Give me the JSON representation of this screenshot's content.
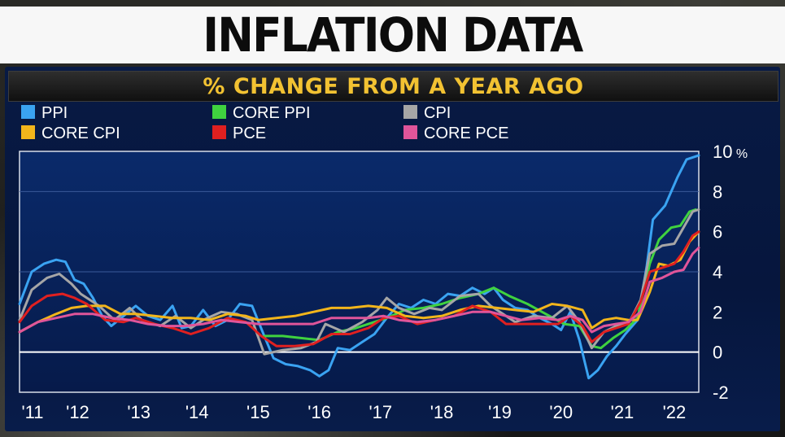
{
  "title": "INFLATION DATA",
  "subtitle": "% CHANGE FROM A YEAR AGO",
  "chart_data": {
    "type": "line",
    "title": "INFLATION DATA",
    "subtitle": "% CHANGE FROM A YEAR AGO",
    "x_ticks": [
      "'11",
      "'12",
      "'13",
      "'14",
      "'15",
      "'16",
      "'17",
      "'18",
      "'19",
      "'20",
      "'21",
      "'22"
    ],
    "y_ticks": [
      "10 %",
      "8",
      "6",
      "4",
      "2",
      "0",
      "-2"
    ],
    "y_range": [
      -2,
      10
    ],
    "x_range": [
      2011.0,
      2022.1
    ],
    "grid": "horizontal",
    "legend_position": "top-left",
    "series": [
      {
        "name": "PPI",
        "color": "#3aa3f2",
        "points": [
          [
            2011.0,
            2.4
          ],
          [
            2011.2,
            4.0
          ],
          [
            2011.4,
            4.4
          ],
          [
            2011.6,
            4.6
          ],
          [
            2011.75,
            4.5
          ],
          [
            2011.9,
            3.6
          ],
          [
            2012.05,
            3.4
          ],
          [
            2012.2,
            2.7
          ],
          [
            2012.35,
            1.8
          ],
          [
            2012.5,
            1.3
          ],
          [
            2012.7,
            1.8
          ],
          [
            2012.9,
            2.3
          ],
          [
            2013.1,
            1.8
          ],
          [
            2013.3,
            1.6
          ],
          [
            2013.5,
            2.3
          ],
          [
            2013.65,
            1.2
          ],
          [
            2013.8,
            1.3
          ],
          [
            2014.0,
            2.1
          ],
          [
            2014.2,
            1.3
          ],
          [
            2014.4,
            1.6
          ],
          [
            2014.6,
            2.4
          ],
          [
            2014.8,
            2.3
          ],
          [
            2015.0,
            0.8
          ],
          [
            2015.15,
            -0.3
          ],
          [
            2015.35,
            -0.6
          ],
          [
            2015.55,
            -0.7
          ],
          [
            2015.75,
            -0.9
          ],
          [
            2015.9,
            -1.2
          ],
          [
            2016.05,
            -0.9
          ],
          [
            2016.2,
            0.2
          ],
          [
            2016.4,
            0.1
          ],
          [
            2016.6,
            0.5
          ],
          [
            2016.8,
            0.9
          ],
          [
            2017.0,
            1.7
          ],
          [
            2017.2,
            2.4
          ],
          [
            2017.4,
            2.2
          ],
          [
            2017.6,
            2.6
          ],
          [
            2017.8,
            2.4
          ],
          [
            2018.0,
            2.9
          ],
          [
            2018.2,
            2.8
          ],
          [
            2018.4,
            3.2
          ],
          [
            2018.6,
            2.9
          ],
          [
            2018.75,
            3.2
          ],
          [
            2018.9,
            2.6
          ],
          [
            2019.1,
            2.2
          ],
          [
            2019.3,
            2.1
          ],
          [
            2019.5,
            1.7
          ],
          [
            2019.7,
            1.4
          ],
          [
            2019.85,
            1.1
          ],
          [
            2020.0,
            2.0
          ],
          [
            2020.15,
            0.6
          ],
          [
            2020.3,
            -1.3
          ],
          [
            2020.45,
            -0.9
          ],
          [
            2020.6,
            -0.2
          ],
          [
            2020.75,
            0.3
          ],
          [
            2020.9,
            0.9
          ],
          [
            2021.1,
            1.6
          ],
          [
            2021.25,
            4.3
          ],
          [
            2021.35,
            6.6
          ],
          [
            2021.55,
            7.3
          ],
          [
            2021.75,
            8.7
          ],
          [
            2021.9,
            9.6
          ],
          [
            2022.0,
            9.7
          ],
          [
            2022.1,
            9.8
          ]
        ]
      },
      {
        "name": "CORE PPI",
        "color": "#3fd23f",
        "points": [
          [
            2015.0,
            0.8
          ],
          [
            2015.3,
            0.8
          ],
          [
            2015.6,
            0.7
          ],
          [
            2015.9,
            0.6
          ],
          [
            2016.2,
            1.0
          ],
          [
            2016.5,
            1.2
          ],
          [
            2016.8,
            1.5
          ],
          [
            2017.0,
            1.7
          ],
          [
            2017.3,
            2.1
          ],
          [
            2017.6,
            2.2
          ],
          [
            2017.9,
            2.4
          ],
          [
            2018.2,
            2.7
          ],
          [
            2018.5,
            2.9
          ],
          [
            2018.75,
            3.2
          ],
          [
            2019.0,
            2.8
          ],
          [
            2019.3,
            2.4
          ],
          [
            2019.6,
            1.9
          ],
          [
            2019.9,
            1.4
          ],
          [
            2020.15,
            1.3
          ],
          [
            2020.35,
            0.3
          ],
          [
            2020.5,
            0.2
          ],
          [
            2020.7,
            0.7
          ],
          [
            2020.9,
            1.1
          ],
          [
            2021.1,
            1.7
          ],
          [
            2021.3,
            4.4
          ],
          [
            2021.45,
            5.6
          ],
          [
            2021.65,
            6.2
          ],
          [
            2021.8,
            6.3
          ],
          [
            2021.95,
            7.0
          ],
          [
            2022.05,
            7.1
          ]
        ]
      },
      {
        "name": "CPI",
        "color": "#a6a6a6",
        "points": [
          [
            2011.0,
            1.6
          ],
          [
            2011.2,
            3.1
          ],
          [
            2011.45,
            3.7
          ],
          [
            2011.65,
            3.9
          ],
          [
            2011.85,
            3.4
          ],
          [
            2012.0,
            2.9
          ],
          [
            2012.3,
            2.3
          ],
          [
            2012.55,
            1.6
          ],
          [
            2012.8,
            2.2
          ],
          [
            2013.0,
            1.6
          ],
          [
            2013.3,
            1.3
          ],
          [
            2013.55,
            1.8
          ],
          [
            2013.8,
            1.2
          ],
          [
            2014.0,
            1.6
          ],
          [
            2014.3,
            2.0
          ],
          [
            2014.55,
            1.9
          ],
          [
            2014.8,
            1.6
          ],
          [
            2015.0,
            -0.1
          ],
          [
            2015.3,
            0.1
          ],
          [
            2015.6,
            0.2
          ],
          [
            2015.85,
            0.5
          ],
          [
            2016.0,
            1.4
          ],
          [
            2016.3,
            1.0
          ],
          [
            2016.6,
            1.5
          ],
          [
            2016.85,
            2.1
          ],
          [
            2017.0,
            2.7
          ],
          [
            2017.2,
            2.2
          ],
          [
            2017.45,
            1.9
          ],
          [
            2017.7,
            2.2
          ],
          [
            2017.9,
            2.1
          ],
          [
            2018.2,
            2.8
          ],
          [
            2018.5,
            2.9
          ],
          [
            2018.7,
            2.3
          ],
          [
            2018.9,
            1.9
          ],
          [
            2019.1,
            1.5
          ],
          [
            2019.4,
            1.8
          ],
          [
            2019.7,
            1.7
          ],
          [
            2019.95,
            2.3
          ],
          [
            2020.15,
            1.5
          ],
          [
            2020.35,
            0.2
          ],
          [
            2020.55,
            1.0
          ],
          [
            2020.75,
            1.3
          ],
          [
            2020.95,
            1.4
          ],
          [
            2021.15,
            2.6
          ],
          [
            2021.3,
            4.9
          ],
          [
            2021.5,
            5.3
          ],
          [
            2021.7,
            5.4
          ],
          [
            2021.85,
            6.2
          ],
          [
            2022.0,
            7.0
          ],
          [
            2022.1,
            7.1
          ]
        ]
      },
      {
        "name": "CORE CPI",
        "color": "#f2b51b",
        "points": [
          [
            2011.0,
            1.0
          ],
          [
            2011.3,
            1.5
          ],
          [
            2011.6,
            1.9
          ],
          [
            2011.85,
            2.2
          ],
          [
            2012.1,
            2.3
          ],
          [
            2012.4,
            2.3
          ],
          [
            2012.65,
            1.9
          ],
          [
            2012.9,
            1.9
          ],
          [
            2013.2,
            1.8
          ],
          [
            2013.5,
            1.7
          ],
          [
            2013.8,
            1.7
          ],
          [
            2014.1,
            1.6
          ],
          [
            2014.4,
            1.9
          ],
          [
            2014.7,
            1.8
          ],
          [
            2014.9,
            1.6
          ],
          [
            2015.2,
            1.7
          ],
          [
            2015.5,
            1.8
          ],
          [
            2015.8,
            2.0
          ],
          [
            2016.1,
            2.2
          ],
          [
            2016.4,
            2.2
          ],
          [
            2016.7,
            2.3
          ],
          [
            2017.0,
            2.2
          ],
          [
            2017.3,
            1.8
          ],
          [
            2017.6,
            1.7
          ],
          [
            2017.9,
            1.8
          ],
          [
            2018.2,
            2.1
          ],
          [
            2018.5,
            2.3
          ],
          [
            2018.8,
            2.2
          ],
          [
            2019.1,
            2.1
          ],
          [
            2019.4,
            2.0
          ],
          [
            2019.7,
            2.4
          ],
          [
            2019.95,
            2.3
          ],
          [
            2020.2,
            2.1
          ],
          [
            2020.35,
            1.2
          ],
          [
            2020.55,
            1.6
          ],
          [
            2020.75,
            1.7
          ],
          [
            2020.95,
            1.6
          ],
          [
            2021.1,
            1.6
          ],
          [
            2021.3,
            3.0
          ],
          [
            2021.45,
            4.4
          ],
          [
            2021.6,
            4.3
          ],
          [
            2021.8,
            4.6
          ],
          [
            2021.95,
            5.5
          ],
          [
            2022.1,
            6.0
          ]
        ]
      },
      {
        "name": "PCE",
        "color": "#e02020",
        "points": [
          [
            2011.0,
            1.5
          ],
          [
            2011.2,
            2.3
          ],
          [
            2011.45,
            2.8
          ],
          [
            2011.7,
            2.9
          ],
          [
            2011.9,
            2.7
          ],
          [
            2012.1,
            2.4
          ],
          [
            2012.4,
            1.6
          ],
          [
            2012.7,
            1.5
          ],
          [
            2012.9,
            1.7
          ],
          [
            2013.2,
            1.4
          ],
          [
            2013.5,
            1.2
          ],
          [
            2013.8,
            0.9
          ],
          [
            2014.1,
            1.2
          ],
          [
            2014.4,
            1.7
          ],
          [
            2014.7,
            1.5
          ],
          [
            2014.95,
            0.8
          ],
          [
            2015.2,
            0.3
          ],
          [
            2015.5,
            0.3
          ],
          [
            2015.8,
            0.4
          ],
          [
            2016.1,
            0.9
          ],
          [
            2016.4,
            0.9
          ],
          [
            2016.7,
            1.2
          ],
          [
            2016.95,
            1.7
          ],
          [
            2017.2,
            1.8
          ],
          [
            2017.5,
            1.4
          ],
          [
            2017.8,
            1.6
          ],
          [
            2018.1,
            1.8
          ],
          [
            2018.4,
            2.3
          ],
          [
            2018.7,
            2.0
          ],
          [
            2018.95,
            1.4
          ],
          [
            2019.2,
            1.4
          ],
          [
            2019.5,
            1.4
          ],
          [
            2019.8,
            1.4
          ],
          [
            2020.0,
            1.8
          ],
          [
            2020.2,
            1.3
          ],
          [
            2020.35,
            0.5
          ],
          [
            2020.55,
            1.0
          ],
          [
            2020.75,
            1.2
          ],
          [
            2020.95,
            1.4
          ],
          [
            2021.15,
            2.5
          ],
          [
            2021.3,
            4.0
          ],
          [
            2021.5,
            4.2
          ],
          [
            2021.7,
            4.4
          ],
          [
            2021.85,
            5.0
          ],
          [
            2022.0,
            5.8
          ],
          [
            2022.1,
            6.0
          ]
        ]
      },
      {
        "name": "CORE PCE",
        "color": "#e0559a",
        "points": [
          [
            2011.0,
            1.0
          ],
          [
            2011.3,
            1.5
          ],
          [
            2011.6,
            1.7
          ],
          [
            2011.9,
            1.9
          ],
          [
            2012.2,
            1.9
          ],
          [
            2012.5,
            1.7
          ],
          [
            2012.8,
            1.6
          ],
          [
            2013.1,
            1.4
          ],
          [
            2013.4,
            1.3
          ],
          [
            2013.7,
            1.3
          ],
          [
            2014.0,
            1.4
          ],
          [
            2014.3,
            1.6
          ],
          [
            2014.6,
            1.5
          ],
          [
            2014.9,
            1.4
          ],
          [
            2015.2,
            1.4
          ],
          [
            2015.5,
            1.4
          ],
          [
            2015.8,
            1.4
          ],
          [
            2016.1,
            1.7
          ],
          [
            2016.4,
            1.7
          ],
          [
            2016.7,
            1.7
          ],
          [
            2016.95,
            1.8
          ],
          [
            2017.2,
            1.6
          ],
          [
            2017.5,
            1.5
          ],
          [
            2017.8,
            1.6
          ],
          [
            2018.1,
            1.8
          ],
          [
            2018.4,
            2.0
          ],
          [
            2018.7,
            2.0
          ],
          [
            2018.95,
            1.8
          ],
          [
            2019.2,
            1.6
          ],
          [
            2019.5,
            1.7
          ],
          [
            2019.8,
            1.6
          ],
          [
            2020.0,
            1.8
          ],
          [
            2020.2,
            1.6
          ],
          [
            2020.35,
            1.0
          ],
          [
            2020.55,
            1.3
          ],
          [
            2020.75,
            1.4
          ],
          [
            2020.95,
            1.5
          ],
          [
            2021.15,
            2.0
          ],
          [
            2021.3,
            3.5
          ],
          [
            2021.5,
            3.7
          ],
          [
            2021.7,
            4.0
          ],
          [
            2021.85,
            4.1
          ],
          [
            2022.0,
            4.9
          ],
          [
            2022.1,
            5.2
          ]
        ]
      }
    ]
  }
}
